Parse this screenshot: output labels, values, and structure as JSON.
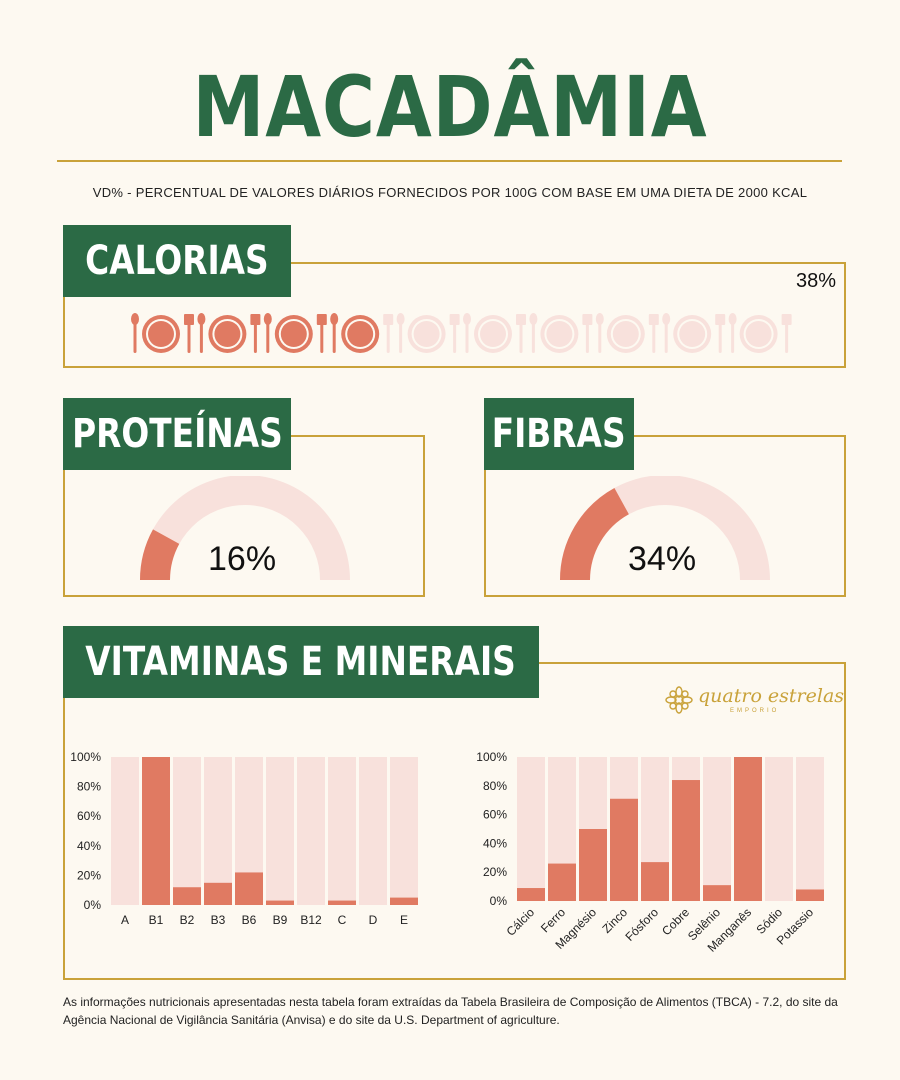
{
  "title": "MACADÂMIA",
  "subtitle": "VD% - PERCENTUAL DE VALORES DIÁRIOS FORNECIDOS POR 100G COM BASE EM UMA DIETA DE 2000 KCAL",
  "sections": {
    "calorias": {
      "label": "CALORIAS",
      "value_text": "38%",
      "value": 38
    },
    "proteinas": {
      "label": "PROTEÍNAS",
      "value_text": "16%",
      "value": 16
    },
    "fibras": {
      "label": "FIBRAS",
      "value_text": "34%",
      "value": 34
    },
    "vitaminas": {
      "label": "VITAMINAS E MINERAIS"
    }
  },
  "logo": {
    "text": "quatro estrelas",
    "subtext": "EMPORIO"
  },
  "footnote": "As informações nutricionais apresentadas nesta tabela foram extraídas da Tabela Brasileira de Composição de Alimentos (TBCA) - 7.2, do site da Agência Nacional de Vigilância Sanitária (Anvisa) e do site da U.S. Department of agriculture.",
  "colors": {
    "green": "#2b6a45",
    "gold": "#c9a23a",
    "salmon": "#e07a62",
    "light": "#f8e1dc"
  },
  "chart_data": [
    {
      "type": "bar",
      "categories": [
        "A",
        "B1",
        "B2",
        "B3",
        "B6",
        "B9",
        "B12",
        "C",
        "D",
        "E"
      ],
      "values": [
        0,
        100,
        12,
        15,
        22,
        3,
        0,
        3,
        0,
        5
      ],
      "yticks": [
        "0%",
        "20%",
        "40%",
        "60%",
        "80%",
        "100%"
      ],
      "ylim": [
        0,
        100
      ]
    },
    {
      "type": "bar",
      "categories": [
        "Cálcio",
        "Ferro",
        "Magnésio",
        "Zinco",
        "Fósforo",
        "Cobre",
        "Selênio",
        "Manganês",
        "Sódio",
        "Potassio"
      ],
      "values": [
        9,
        26,
        50,
        71,
        27,
        84,
        11,
        100,
        0,
        8
      ],
      "yticks": [
        "0%",
        "20%",
        "40%",
        "60%",
        "80%",
        "100%"
      ],
      "ylim": [
        0,
        100
      ]
    }
  ]
}
